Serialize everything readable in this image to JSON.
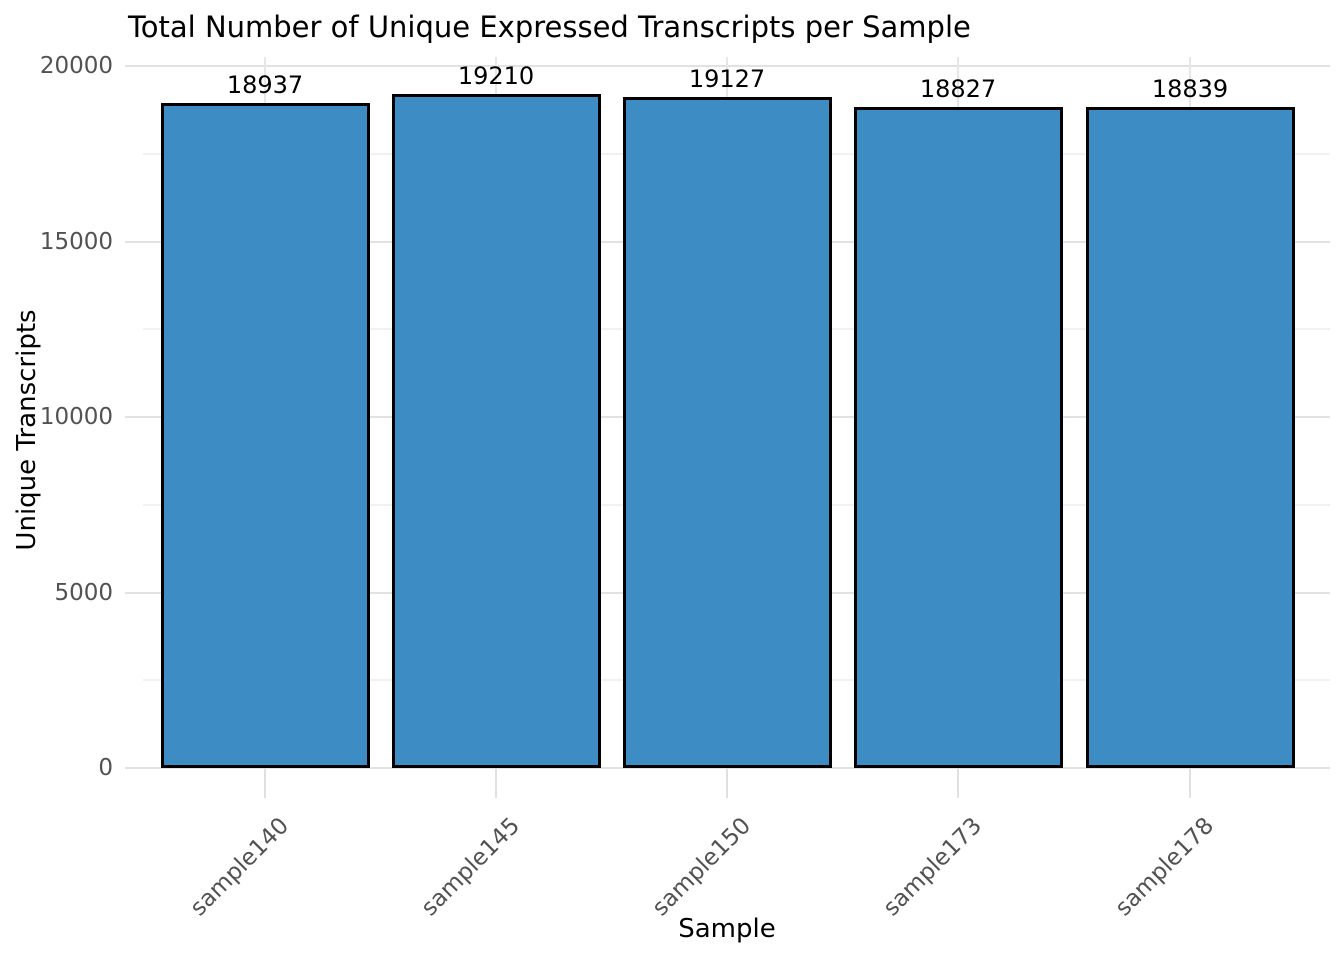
{
  "chart_data": {
    "type": "bar",
    "title": "Total Number of Unique Expressed Transcripts per Sample",
    "xlabel": "Sample",
    "ylabel": "Unique Transcripts",
    "categories": [
      "sample140",
      "sample145",
      "sample150",
      "sample173",
      "sample178"
    ],
    "values": [
      18937,
      19210,
      19127,
      18827,
      18839
    ],
    "bar_labels": [
      "18937",
      "19210",
      "19127",
      "18827",
      "18839"
    ],
    "ylim": [
      0,
      20000
    ],
    "yticks": [
      0,
      5000,
      10000,
      15000,
      20000
    ],
    "ytick_labels": [
      "0",
      "5000",
      "10000",
      "15000",
      "20000"
    ],
    "minor_yticks": [
      2500,
      7500,
      12500,
      17500
    ],
    "x_tick_rotation_deg": 45,
    "grid": true,
    "legend": null,
    "colors": {
      "bar_fill": "#3D8CC4",
      "bar_edge": "#000000",
      "grid_major": "#e2e2e2",
      "grid_minor": "#f1f1f1",
      "grid_vertical": "#e7e7e7",
      "tick_mark": "#e0e0e0",
      "tick_label": "#525252",
      "text": "#000000",
      "background": "#ffffff"
    }
  }
}
